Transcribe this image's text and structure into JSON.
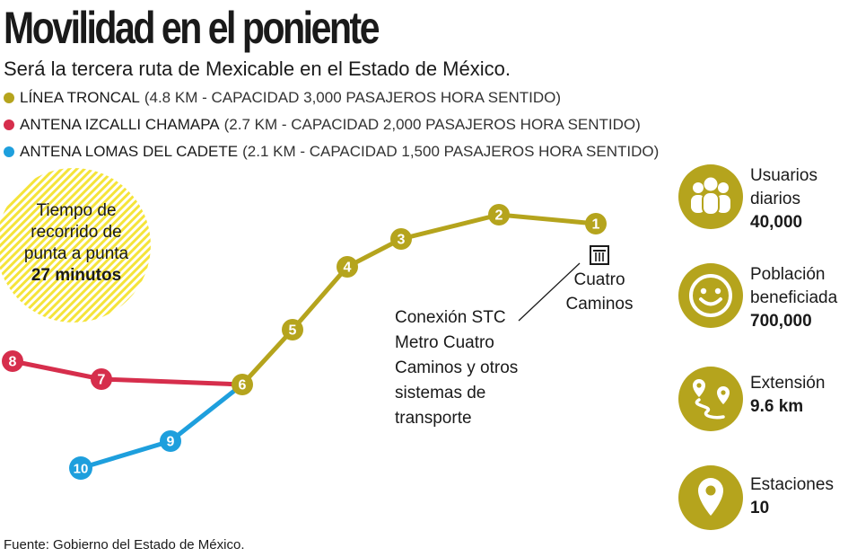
{
  "header": {
    "title": "Movilidad en el poniente",
    "subtitle": "Será la tercera ruta de Mexicable en el Estado de México."
  },
  "legend": [
    {
      "name": "LÍNEA TRONCAL",
      "detail": "(4.8 KM - CAPACIDAD 3,000 PASAJEROS HORA SENTIDO)",
      "color": "#b5a41d"
    },
    {
      "name": "ANTENA IZCALLI CHAMAPA",
      "detail": "(2.7 KM - CAPACIDAD 2,000 PASAJEROS HORA SENTIDO)",
      "color": "#d62e4c"
    },
    {
      "name": "ANTENA LOMAS DEL CADETE",
      "detail": "(2.1 KM - CAPACIDAD 1,500 PASAJEROS HORA SENTIDO)",
      "color": "#1e9fdd"
    }
  ],
  "travel_time": {
    "lines": [
      "Tiempo de",
      "recorrido de",
      "punta a punta"
    ],
    "value": "27 minutos"
  },
  "stations": [
    "1",
    "2",
    "3",
    "4",
    "5",
    "6",
    "7",
    "8",
    "9",
    "10"
  ],
  "terminal": {
    "lines": [
      "Cuatro",
      "Caminos"
    ],
    "icon": "metro-station-icon"
  },
  "connection_note": [
    "Conexión STC",
    "Metro Cuatro",
    "Caminos y otros",
    "sistemas de",
    "transporte"
  ],
  "stats": [
    {
      "icon": "users-icon",
      "label_lines": [
        "Usuarios",
        "diarios"
      ],
      "value": "40,000"
    },
    {
      "icon": "smiley-icon",
      "label_lines": [
        "Población",
        "beneficiada"
      ],
      "value": "700,000"
    },
    {
      "icon": "route-icon",
      "label_lines": [
        "Extensión"
      ],
      "value": "9.6 km"
    },
    {
      "icon": "location-pin-icon",
      "label_lines": [
        "Estaciones"
      ],
      "value": "10"
    }
  ],
  "source": "Fuente: Gobierno del Estado de México.",
  "colors": {
    "troncal": "#b5a41d",
    "izcalli": "#d62e4c",
    "lomas": "#1e9fdd",
    "accent": "#b5a41d"
  }
}
